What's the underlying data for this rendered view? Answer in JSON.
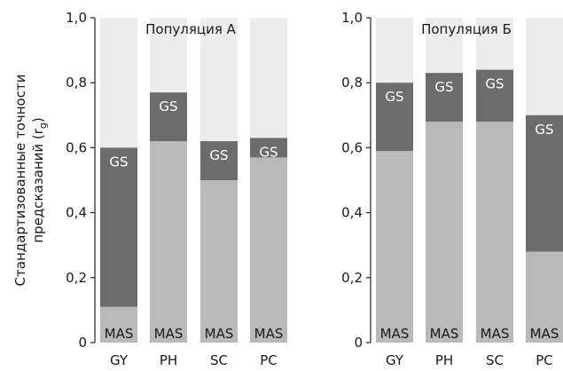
{
  "chart_data": [
    {
      "type": "bar",
      "title": "Популяция А",
      "ylabel_line1": "Стандартизованные точности",
      "ylabel_line2": "предсказаний (r",
      "ylabel_sub": "g",
      "ylabel_close": ")",
      "ylim": [
        0,
        1.0
      ],
      "y_ticks": [
        "0",
        "0,2",
        "0,4",
        "0,6",
        "0,8",
        "1,0"
      ],
      "categories": [
        "GY",
        "PH",
        "SC",
        "PC"
      ],
      "series": [
        {
          "name": "MAS",
          "values": [
            0.11,
            0.62,
            0.5,
            0.57
          ]
        },
        {
          "name": "GS",
          "values": [
            0.49,
            0.15,
            0.12,
            0.06
          ]
        }
      ],
      "total": 1.0
    },
    {
      "type": "bar",
      "title": "Популяция Б",
      "ylim": [
        0,
        1.0
      ],
      "y_ticks": [
        "0",
        "0,2",
        "0,4",
        "0,6",
        "0,8",
        "1,0"
      ],
      "categories": [
        "GY",
        "PH",
        "SC",
        "PC"
      ],
      "series": [
        {
          "name": "MAS",
          "values": [
            0.59,
            0.68,
            0.68,
            0.28
          ]
        },
        {
          "name": "GS",
          "values": [
            0.21,
            0.15,
            0.16,
            0.42
          ]
        }
      ],
      "total": 1.0
    }
  ],
  "colors": {
    "mas": "#b9b9b9",
    "gs": "#6c6c6c",
    "remainder": "#ececec",
    "gs_text": "#ffffff",
    "text": "#1a1a1a"
  }
}
